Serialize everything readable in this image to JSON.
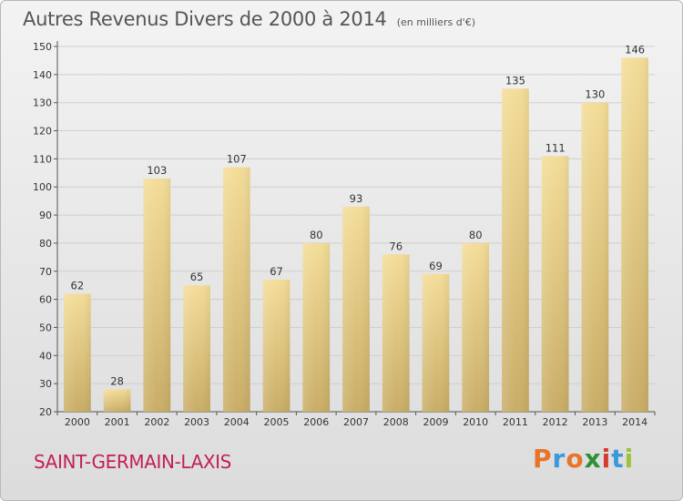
{
  "header": {
    "title": "Autres Revenus Divers de 2000 à 2014",
    "unit": "(en milliers d'€)"
  },
  "footer": {
    "location": "SAINT-GERMAIN-LAXIS",
    "brand": "Proxiti",
    "brand_colors": [
      "#e8742a",
      "#3a9ad9",
      "#e8742a",
      "#2f8f3a",
      "#d63b2f",
      "#3a9ad9",
      "#9bc43a"
    ]
  },
  "colors": {
    "bar_light": "#f4dd98",
    "bar_dark": "#c9ad67",
    "grid": "#cfcfcf",
    "title": "#555555",
    "location": "#c21f5a"
  },
  "chart_data": {
    "type": "bar",
    "categories": [
      "2000",
      "2001",
      "2002",
      "2003",
      "2004",
      "2005",
      "2006",
      "2007",
      "2008",
      "2009",
      "2010",
      "2011",
      "2012",
      "2013",
      "2014"
    ],
    "values": [
      62,
      28,
      103,
      65,
      107,
      67,
      80,
      93,
      76,
      69,
      80,
      135,
      111,
      130,
      146
    ],
    "title": "Autres Revenus Divers de 2000 à 2014",
    "subtitle": "(en milliers d'€)",
    "xlabel": "",
    "ylabel": "",
    "ylim": [
      20,
      150
    ],
    "yticks": [
      20,
      30,
      40,
      50,
      60,
      70,
      80,
      90,
      100,
      110,
      120,
      130,
      140,
      150
    ],
    "grid": true,
    "data_labels": true
  }
}
